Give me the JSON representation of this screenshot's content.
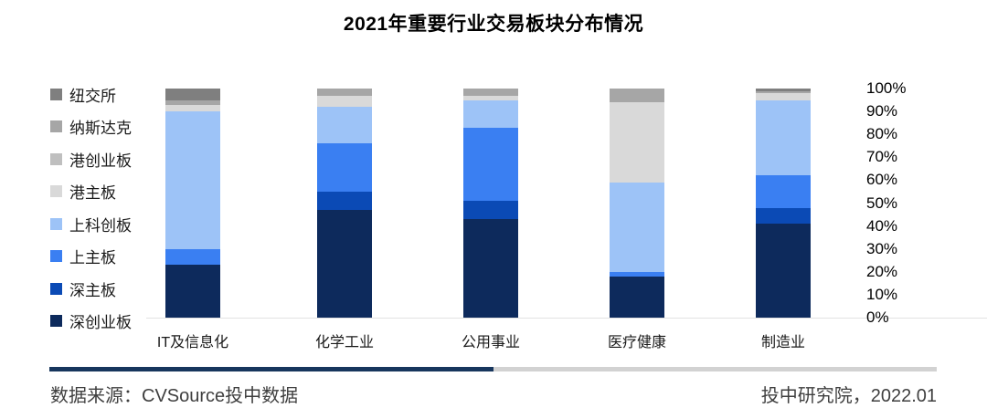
{
  "title": "2021年重要行业交易板块分布情况",
  "legend": {
    "items": [
      {
        "label": "纽交所",
        "color": "#7f7f7f"
      },
      {
        "label": "纳斯达克",
        "color": "#a6a6a6"
      },
      {
        "label": "港创业板",
        "color": "#bfbfbf"
      },
      {
        "label": "港主板",
        "color": "#d9d9d9"
      },
      {
        "label": "上科创板",
        "color": "#9dc3f7"
      },
      {
        "label": "上主板",
        "color": "#3a7ff2"
      },
      {
        "label": "深主板",
        "color": "#0b4ab5"
      },
      {
        "label": "深创业板",
        "color": "#0d2a5c"
      }
    ]
  },
  "chart_data": {
    "type": "bar",
    "stacked": true,
    "normalized_percent": true,
    "title": "2021年重要行业交易板块分布情况",
    "categories": [
      "IT及信息化",
      "化学工业",
      "公用事业",
      "医疗健康",
      "制造业"
    ],
    "series": [
      {
        "name": "深创业板",
        "color": "#0d2a5c",
        "values": [
          23,
          47,
          43,
          18,
          41
        ]
      },
      {
        "name": "深主板",
        "color": "#0b4ab5",
        "values": [
          0,
          8,
          8,
          0,
          7
        ]
      },
      {
        "name": "上主板",
        "color": "#3a7ff2",
        "values": [
          7,
          21,
          32,
          2,
          14
        ]
      },
      {
        "name": "上科创板",
        "color": "#9dc3f7",
        "values": [
          60,
          16,
          12,
          39,
          33
        ]
      },
      {
        "name": "港主板",
        "color": "#d9d9d9",
        "values": [
          3,
          5,
          2,
          35,
          3
        ]
      },
      {
        "name": "港创业板",
        "color": "#bfbfbf",
        "values": [
          0,
          0,
          0,
          0,
          0
        ]
      },
      {
        "name": "纳斯达克",
        "color": "#a6a6a6",
        "values": [
          2,
          3,
          3,
          6,
          1
        ]
      },
      {
        "name": "纽交所",
        "color": "#7f7f7f",
        "values": [
          5,
          0,
          0,
          0,
          1
        ]
      }
    ],
    "y_ticks": [
      "0%",
      "10%",
      "20%",
      "30%",
      "40%",
      "50%",
      "60%",
      "70%",
      "80%",
      "90%",
      "100%"
    ],
    "ylim": [
      0,
      100
    ],
    "grid": false,
    "legend_position": "left",
    "value_axis_position": "right"
  },
  "footer": {
    "source": "数据来源：CVSource投中数据",
    "publisher": "投中研究院，2022.01",
    "divider": {
      "left_color": "#17365d",
      "right_color": "#d2d2d2"
    }
  }
}
